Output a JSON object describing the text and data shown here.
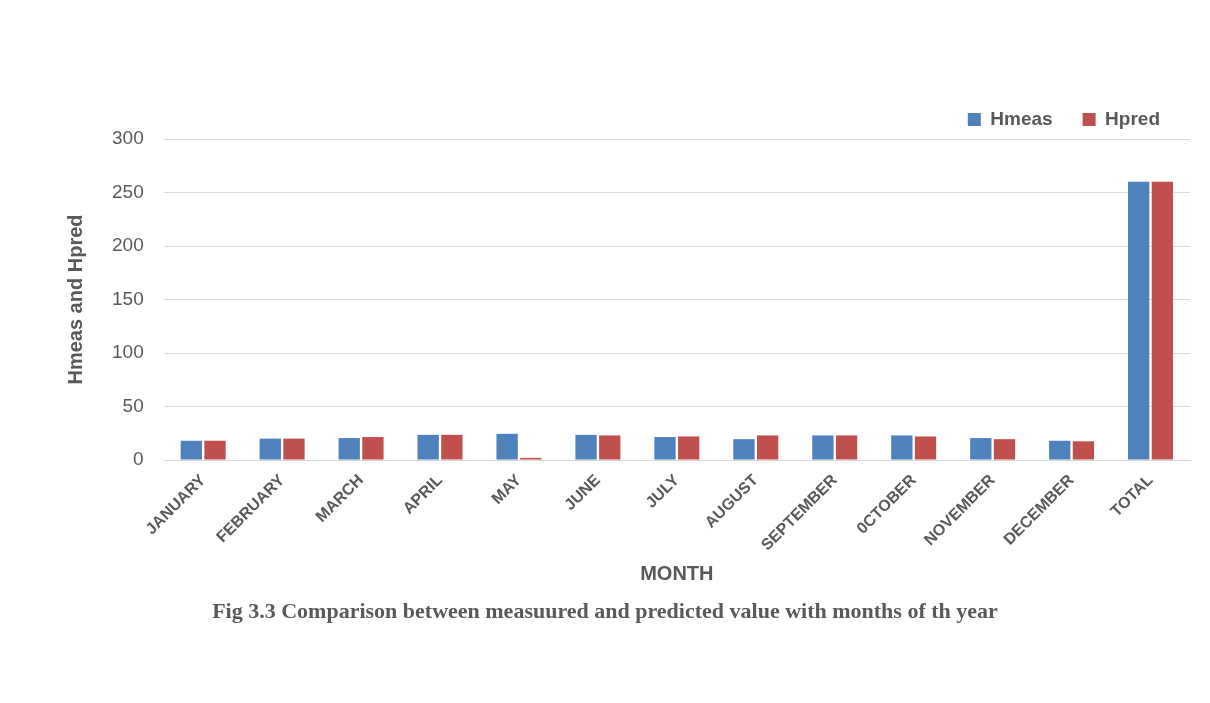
{
  "chart_data": {
    "type": "bar",
    "xlabel": "MONTH",
    "ylabel": "Hmeas and Hpred",
    "categories": [
      "JANUARY",
      "FEBRUARY",
      "MARCH",
      "APRIL",
      "MAY",
      "JUNE",
      "JULY",
      "AUGUST",
      "SEPTEMBER",
      "0CTOBER",
      "NOVEMBER",
      "DECEMBER",
      "TOTAL"
    ],
    "series": [
      {
        "name": "Hmeas",
        "color": "#4f81bd",
        "values": [
          18,
          20,
          20.5,
          23.5,
          24.5,
          23.5,
          21.5,
          19.5,
          23,
          23,
          20.5,
          18,
          260
        ]
      },
      {
        "name": "Hpred",
        "color": "#c0504d",
        "values": [
          18,
          20,
          21.5,
          23.5,
          2,
          23,
          22,
          23,
          23,
          22,
          19.5,
          17.5,
          260
        ]
      }
    ],
    "ylim": [
      0,
      300
    ],
    "yticks": [
      0,
      50,
      100,
      150,
      200,
      250,
      300
    ],
    "grid": "y",
    "legend": "top",
    "annotations": [
      "Fig 3.3 Comparison between measuured and predicted value with months of th year"
    ]
  }
}
